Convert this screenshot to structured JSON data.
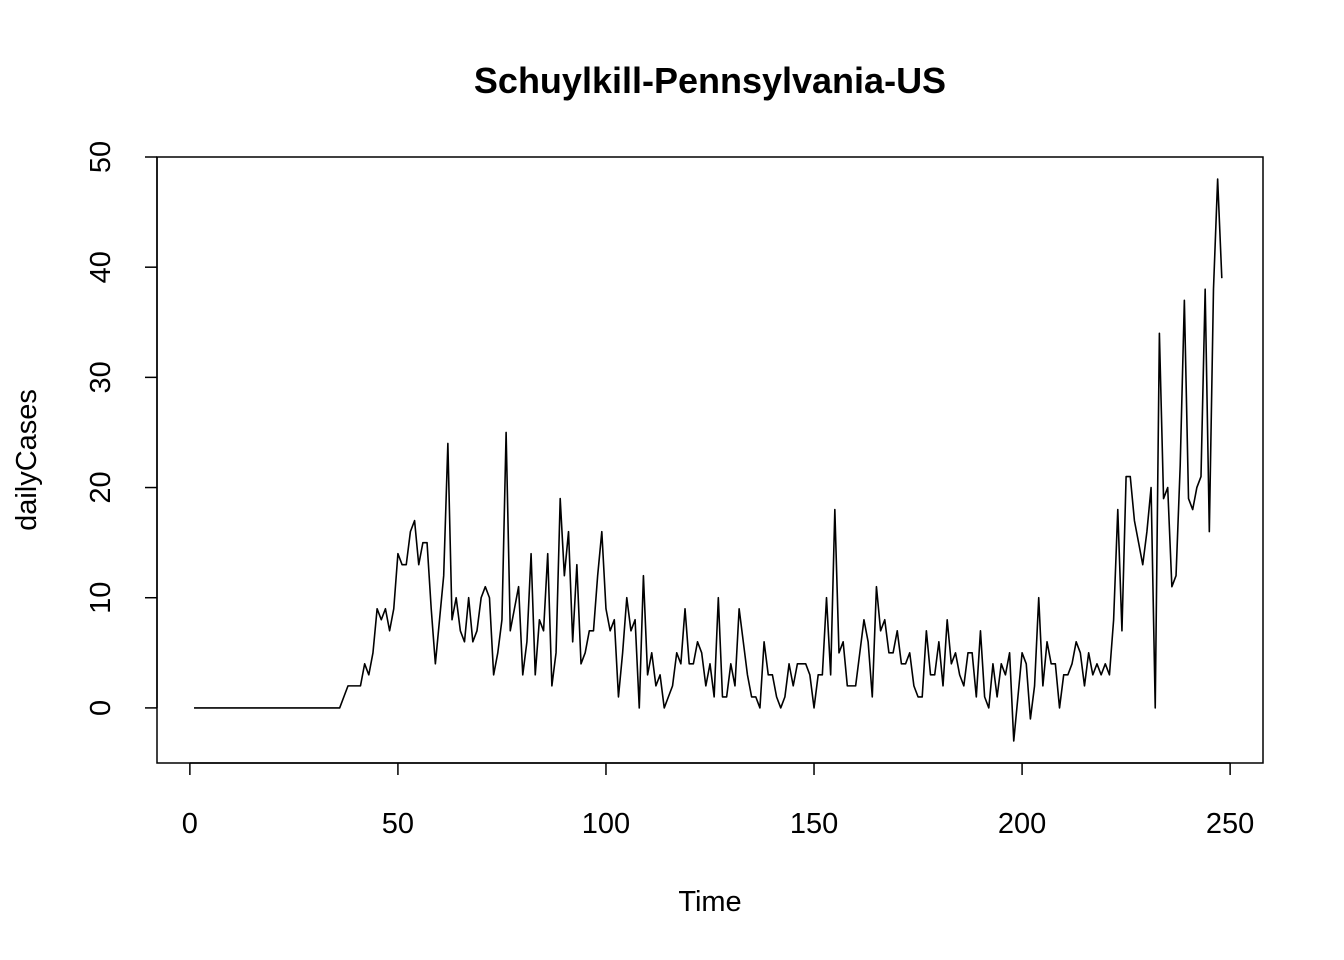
{
  "chart_data": {
    "type": "line",
    "title": "Schuylkill-Pennsylvania-US",
    "xlabel": "Time",
    "ylabel": "dailyCases",
    "xlim": [
      -7.9,
      257.9
    ],
    "ylim": [
      -5,
      50
    ],
    "xticks": [
      0,
      50,
      100,
      150,
      200,
      250
    ],
    "yticks": [
      0,
      10,
      20,
      30,
      40,
      50
    ],
    "xtick_labels": [
      "0",
      "50",
      "100",
      "150",
      "200",
      "250"
    ],
    "ytick_labels": [
      "0",
      "10",
      "20",
      "30",
      "40",
      "50"
    ],
    "grid": false,
    "legend": "none",
    "line_color": "#000000",
    "series": [
      {
        "x_start": 1,
        "x_step": 1,
        "values": [
          0,
          0,
          0,
          0,
          0,
          0,
          0,
          0,
          0,
          0,
          0,
          0,
          0,
          0,
          0,
          0,
          0,
          0,
          0,
          0,
          0,
          0,
          0,
          0,
          0,
          0,
          0,
          0,
          0,
          0,
          0,
          0,
          0,
          0,
          0,
          0,
          1,
          2,
          2,
          2,
          2,
          4,
          3,
          5,
          9,
          8,
          9,
          7,
          9,
          14,
          13,
          13,
          16,
          17,
          13,
          15,
          15,
          9,
          4,
          8,
          12,
          24,
          8,
          10,
          7,
          6,
          10,
          6,
          7,
          10,
          11,
          10,
          3,
          5,
          8,
          25,
          7,
          9,
          11,
          3,
          6,
          14,
          3,
          8,
          7,
          14,
          2,
          5,
          19,
          12,
          16,
          6,
          13,
          4,
          5,
          7,
          7,
          12,
          16,
          9,
          7,
          8,
          1,
          5,
          10,
          7,
          8,
          0,
          12,
          3,
          5,
          2,
          3,
          0,
          1,
          2,
          5,
          4,
          9,
          4,
          4,
          6,
          5,
          2,
          4,
          1,
          10,
          1,
          1,
          4,
          2,
          9,
          6,
          3,
          1,
          1,
          0,
          6,
          3,
          3,
          1,
          0,
          1,
          4,
          2,
          4,
          4,
          4,
          3,
          0,
          3,
          3,
          10,
          3,
          18,
          5,
          6,
          2,
          2,
          2,
          5,
          8,
          6,
          1,
          11,
          7,
          8,
          5,
          5,
          7,
          4,
          4,
          5,
          2,
          1,
          1,
          7,
          3,
          3,
          6,
          2,
          8,
          4,
          5,
          3,
          2,
          5,
          5,
          1,
          7,
          1,
          0,
          4,
          1,
          4,
          3,
          5,
          -3,
          1,
          5,
          4,
          -1,
          2,
          10,
          2,
          6,
          4,
          4,
          0,
          3,
          3,
          4,
          6,
          5,
          2,
          5,
          3,
          4,
          3,
          4,
          3,
          8,
          18,
          7,
          21,
          21,
          17,
          15,
          13,
          16,
          20,
          0,
          34,
          19,
          20,
          11,
          12,
          22,
          37,
          19,
          18,
          20,
          21,
          38,
          16,
          38,
          48,
          39
        ]
      }
    ]
  }
}
